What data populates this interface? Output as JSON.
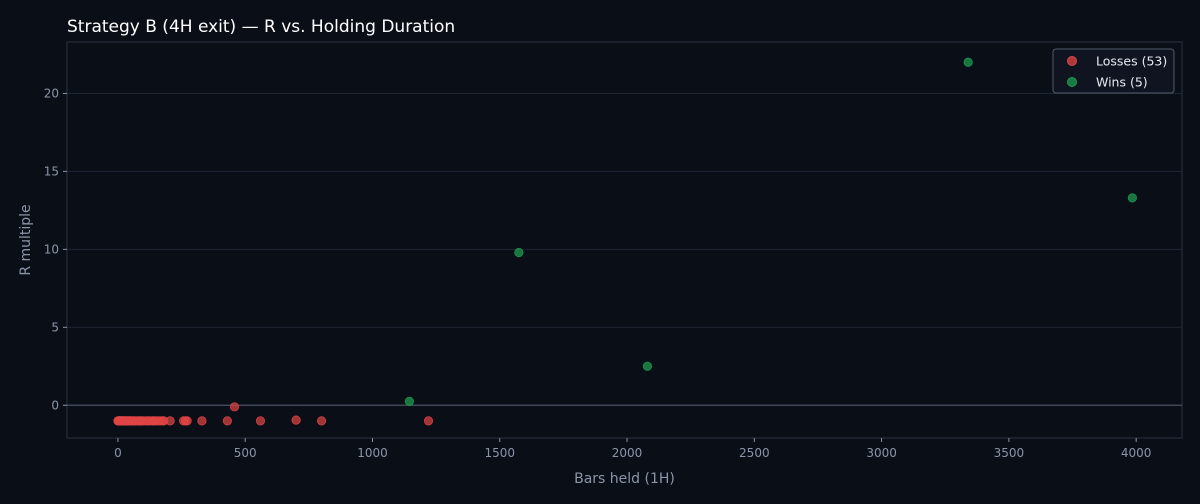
{
  "chart_data": {
    "type": "scatter",
    "title": "Strategy B (4H exit) — R vs. Holding Duration",
    "xlabel": "Bars held (1H)",
    "ylabel": "R multiple",
    "xlim": [
      -200,
      4180
    ],
    "ylim": [
      -2.1,
      23.3
    ],
    "xticks": [
      0,
      500,
      1000,
      1500,
      2000,
      2500,
      3000,
      3500,
      4000
    ],
    "yticks": [
      0,
      5,
      10,
      15,
      20
    ],
    "grid": "y",
    "zero_line": true,
    "legend_position": "top-right",
    "series": [
      {
        "name": "Losses (53)",
        "color": "#e04545",
        "points": [
          [
            0,
            -1
          ],
          [
            2,
            -1
          ],
          [
            4,
            -1
          ],
          [
            6,
            -1
          ],
          [
            8,
            -1
          ],
          [
            10,
            -1
          ],
          [
            12,
            -1
          ],
          [
            14,
            -1
          ],
          [
            16,
            -1
          ],
          [
            18,
            -1
          ],
          [
            20,
            -1
          ],
          [
            23,
            -1
          ],
          [
            26,
            -1
          ],
          [
            30,
            -1
          ],
          [
            34,
            -1
          ],
          [
            38,
            -1
          ],
          [
            42,
            -1
          ],
          [
            46,
            -1
          ],
          [
            50,
            -1
          ],
          [
            55,
            -1
          ],
          [
            60,
            -1
          ],
          [
            66,
            -1
          ],
          [
            72,
            -1
          ],
          [
            78,
            -1
          ],
          [
            85,
            -1
          ],
          [
            92,
            -1
          ],
          [
            100,
            -1
          ],
          [
            110,
            -1
          ],
          [
            118,
            -1
          ],
          [
            125,
            -1
          ],
          [
            135,
            -1
          ],
          [
            145,
            -1
          ],
          [
            155,
            -1
          ],
          [
            165,
            -1
          ],
          [
            175,
            -1
          ],
          [
            205,
            -1
          ],
          [
            258,
            -1
          ],
          [
            265,
            -1
          ],
          [
            272,
            -1
          ],
          [
            330,
            -1
          ],
          [
            430,
            -1
          ],
          [
            458,
            -0.1
          ],
          [
            560,
            -1
          ],
          [
            700,
            -0.95
          ],
          [
            800,
            -1
          ],
          [
            1220,
            -1
          ],
          [
            5,
            -1
          ],
          [
            28,
            -1
          ],
          [
            48,
            -1
          ],
          [
            88,
            -1
          ],
          [
            140,
            -1
          ],
          [
            180,
            -1
          ],
          [
            62,
            -1
          ]
        ]
      },
      {
        "name": "Wins (5)",
        "color": "#1f9a4f",
        "points": [
          [
            1145,
            0.25
          ],
          [
            1575,
            9.8
          ],
          [
            2080,
            2.5
          ],
          [
            3340,
            22.0
          ],
          [
            3985,
            13.3
          ]
        ]
      }
    ]
  }
}
